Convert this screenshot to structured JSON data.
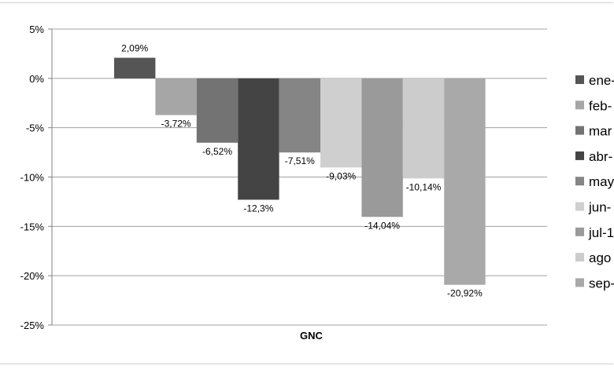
{
  "chart_data": {
    "type": "bar",
    "categories": [
      "GNC"
    ],
    "series": [
      {
        "name": "ene-",
        "values": [
          2.09
        ],
        "label": "2,09%",
        "color": "#555555"
      },
      {
        "name": "feb-",
        "values": [
          -3.72
        ],
        "label": "-3,72%",
        "color": "#a6a6a6"
      },
      {
        "name": "mar",
        "values": [
          -6.52
        ],
        "label": "-6,52%",
        "color": "#737373"
      },
      {
        "name": "abr-",
        "values": [
          -12.3
        ],
        "label": "-12,3%",
        "color": "#444444"
      },
      {
        "name": "may",
        "values": [
          -7.51
        ],
        "label": "-7,51%",
        "color": "#858585"
      },
      {
        "name": "jun-",
        "values": [
          -9.03
        ],
        "label": "-9,03%",
        "color": "#cfcfcf"
      },
      {
        "name": "jul-1",
        "values": [
          -14.04
        ],
        "label": "-14,04%",
        "color": "#9a9a9a"
      },
      {
        "name": "ago",
        "values": [
          -10.14
        ],
        "label": "-10,14%",
        "color": "#cccccc"
      },
      {
        "name": "sep-",
        "values": [
          -20.92
        ],
        "label": "-20,92%",
        "color": "#a9a9a9"
      }
    ],
    "ylim": [
      -25,
      5
    ],
    "yticks": [
      5,
      0,
      -5,
      -10,
      -15,
      -20,
      -25
    ],
    "ytick_labels": [
      "5%",
      "0%",
      "-5%",
      "-10%",
      "-15%",
      "-20%",
      "-25%"
    ],
    "grid": true,
    "legend": "right"
  }
}
